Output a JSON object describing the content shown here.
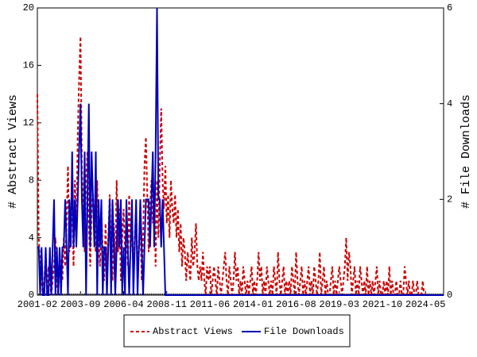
{
  "chart_data": {
    "type": "line",
    "y_label": "# Abstract Views",
    "y2_label": "# File Downloads",
    "x": [
      "2001-02",
      null,
      null,
      null,
      null,
      null,
      null,
      null,
      null,
      null,
      null,
      null,
      null,
      null,
      null,
      null,
      null,
      null,
      null,
      null,
      null,
      null,
      null,
      null,
      null,
      null,
      null,
      null,
      null,
      null,
      null,
      "2003-09",
      null,
      null,
      null,
      null,
      null,
      null,
      null,
      null,
      null,
      null,
      null,
      null,
      null,
      null,
      null,
      null,
      null,
      null,
      null,
      null,
      null,
      null,
      null,
      null,
      null,
      null,
      null,
      null,
      null,
      null,
      "2006-04",
      null,
      null,
      null,
      null,
      null,
      null,
      null,
      null,
      null,
      null,
      null,
      null,
      null,
      null,
      null,
      null,
      null,
      null,
      null,
      null,
      null,
      null,
      null,
      null,
      null,
      null,
      null,
      null,
      null,
      null,
      "2008-11",
      null,
      null,
      null,
      null,
      null,
      null,
      null,
      null,
      null,
      null,
      null,
      null,
      null,
      null,
      null,
      null,
      null,
      null,
      null,
      null,
      null,
      null,
      null,
      null,
      null,
      null,
      null,
      null,
      null,
      null,
      "2011-06",
      null,
      null,
      null,
      null,
      null,
      null,
      null,
      null,
      null,
      null,
      null,
      null,
      null,
      null,
      null,
      null,
      null,
      null,
      null,
      null,
      null,
      null,
      null,
      null,
      null,
      null,
      null,
      null,
      null,
      null,
      "2014-01",
      null,
      null,
      null,
      null,
      null,
      null,
      null,
      null,
      null,
      null,
      null,
      null,
      null,
      null,
      null,
      null,
      null,
      null,
      null,
      null,
      null,
      null,
      null,
      null,
      null,
      null,
      null,
      null,
      null,
      null,
      "2016-08",
      null,
      null,
      null,
      null,
      null,
      null,
      null,
      null,
      null,
      null,
      null,
      null,
      null,
      null,
      null,
      null,
      null,
      null,
      null,
      null,
      null,
      null,
      null,
      null,
      null,
      null,
      null,
      null,
      null,
      null,
      "2019-03",
      null,
      null,
      null,
      null,
      null,
      null,
      null,
      null,
      null,
      null,
      null,
      null,
      null,
      null,
      null,
      null,
      null,
      null,
      null,
      null,
      null,
      null,
      null,
      null,
      null,
      null,
      null,
      null,
      null,
      null,
      "2021-10",
      null,
      null,
      null,
      null,
      null,
      null,
      null,
      null,
      null,
      null,
      null,
      null,
      null,
      null,
      null,
      null,
      null,
      null,
      null,
      null,
      null,
      null,
      null,
      null,
      null,
      null,
      null,
      null,
      null,
      null,
      "2024-05",
      null,
      null,
      null,
      null,
      null,
      null,
      null,
      null,
      null,
      null,
      null,
      null,
      null
    ],
    "series": [
      {
        "name": "Abstract Views",
        "color": "#cc0000",
        "dash": true,
        "axis": "y",
        "values": [
          14,
          4,
          2,
          1,
          0,
          1,
          3,
          0,
          2,
          1,
          0,
          1,
          2,
          4,
          1,
          0,
          3,
          2,
          1,
          4,
          2,
          5,
          9,
          3,
          6,
          7,
          2,
          8,
          4,
          11,
          15,
          18,
          9,
          6,
          3,
          8,
          10,
          5,
          2,
          6,
          7,
          4,
          3,
          8,
          4,
          2,
          6,
          3,
          1,
          5,
          2,
          4,
          7,
          3,
          1,
          5,
          2,
          8,
          3,
          6,
          1,
          4,
          6,
          3,
          5,
          2,
          7,
          3,
          5,
          2,
          4,
          6,
          2,
          3,
          5,
          1,
          4,
          9,
          11,
          7,
          3,
          6,
          8,
          5,
          7,
          2,
          8,
          4,
          9,
          13,
          8,
          6,
          9,
          5,
          7,
          4,
          8,
          6,
          5,
          7,
          4,
          6,
          3,
          5,
          2,
          4,
          3,
          1,
          3,
          2,
          1,
          4,
          2,
          3,
          5,
          2,
          1,
          2,
          1,
          3,
          1,
          0,
          2,
          1,
          2,
          0,
          1,
          2,
          1,
          0,
          2,
          1,
          0,
          1,
          2,
          3,
          1,
          0,
          2,
          1,
          0,
          1,
          3,
          1,
          2,
          0,
          1,
          0,
          2,
          1,
          0,
          1,
          0,
          1,
          2,
          0,
          1,
          0,
          1,
          3,
          1,
          2,
          0,
          1,
          0,
          2,
          1,
          0,
          1,
          0,
          2,
          1,
          0,
          3,
          1,
          0,
          1,
          2,
          0,
          1,
          0,
          1,
          0,
          2,
          1,
          0,
          3,
          1,
          0,
          1,
          2,
          0,
          1,
          0,
          1,
          2,
          0,
          1,
          0,
          2,
          1,
          0,
          1,
          3,
          0,
          1,
          2,
          0,
          1,
          0,
          0,
          1,
          2,
          0,
          1,
          0,
          1,
          2,
          1,
          0,
          1,
          2,
          4,
          1,
          3,
          2,
          0,
          1,
          2,
          0,
          1,
          0,
          2,
          1,
          0,
          1,
          0,
          2,
          0,
          1,
          0,
          1,
          0,
          1,
          2,
          0,
          1,
          0,
          0,
          1,
          0,
          1,
          0,
          2,
          0,
          1,
          0,
          0,
          1,
          0,
          0,
          1,
          0,
          0,
          2,
          1,
          0,
          1,
          0,
          0,
          1,
          0,
          0,
          1,
          0,
          0,
          0,
          1,
          0,
          0,
          0,
          0,
          0,
          0,
          0,
          0,
          0,
          0,
          0,
          0,
          0,
          0,
          0
        ]
      },
      {
        "name": "File Downloads",
        "color": "#0000bb",
        "dash": false,
        "axis": "y2",
        "values": [
          1,
          1,
          0,
          1,
          0,
          0,
          1,
          0,
          0,
          1,
          0,
          1,
          2,
          0,
          1,
          0,
          1,
          0,
          1,
          1,
          2,
          1,
          0,
          2,
          1,
          3,
          1,
          2,
          1,
          2,
          3,
          4,
          2,
          1,
          3,
          0,
          2,
          4,
          1,
          3,
          2,
          1,
          3,
          0,
          2,
          1,
          2,
          0,
          1,
          1,
          0,
          1,
          2,
          0,
          2,
          1,
          0,
          1,
          2,
          1,
          2,
          0,
          1,
          0,
          2,
          1,
          0,
          1,
          2,
          0,
          1,
          2,
          0,
          1,
          2,
          1,
          0,
          1,
          2,
          2,
          2,
          1,
          2,
          3,
          1,
          3,
          6,
          2,
          2,
          1,
          2,
          1,
          0,
          0,
          0,
          0,
          0,
          0,
          0,
          0,
          0,
          0,
          0,
          0,
          0,
          0,
          0,
          0,
          0,
          0,
          0,
          0,
          0,
          0,
          0,
          0,
          0,
          0,
          0,
          0,
          0,
          0,
          0,
          0,
          0,
          0,
          0,
          0,
          0,
          0,
          0,
          0,
          0,
          0,
          0,
          0,
          0,
          0,
          0,
          0,
          0,
          0,
          0,
          0,
          0,
          0,
          0,
          0,
          0,
          0,
          0,
          0,
          0,
          0,
          0,
          0,
          0,
          0,
          0,
          0,
          0,
          0,
          0,
          0,
          0,
          0,
          0,
          0,
          0,
          0,
          0,
          0,
          0,
          0,
          0,
          0,
          0,
          0,
          0,
          0,
          0,
          0,
          0,
          0,
          0,
          0,
          0,
          0,
          0,
          0,
          0,
          0,
          0,
          0,
          0,
          0,
          0,
          0,
          0,
          0,
          0,
          0,
          0,
          0,
          0,
          0,
          0,
          0,
          0,
          0,
          0,
          0,
          0,
          0,
          0,
          0,
          0,
          0,
          0,
          0,
          0,
          0,
          0,
          0,
          0,
          0,
          0,
          0,
          0,
          0,
          0,
          0,
          0,
          0,
          0,
          0,
          0,
          0,
          0,
          0,
          0,
          0,
          0,
          0,
          0,
          0,
          0,
          0,
          0,
          0,
          0,
          0,
          0,
          0,
          0,
          0,
          0,
          0,
          0,
          0,
          0,
          0,
          0,
          0,
          0,
          0,
          0,
          0,
          0,
          0,
          0,
          0,
          0,
          0,
          0,
          0,
          0,
          0,
          0,
          0,
          0,
          0,
          0,
          0,
          0,
          0,
          0,
          0,
          0,
          0,
          0,
          0,
          0
        ]
      }
    ],
    "ylim": [
      0,
      20
    ],
    "yticks": [
      0,
      4,
      8,
      12,
      16,
      20
    ],
    "y2lim": [
      0,
      6
    ],
    "y2ticks": [
      0,
      2,
      4,
      6
    ],
    "legend": "bottom"
  }
}
